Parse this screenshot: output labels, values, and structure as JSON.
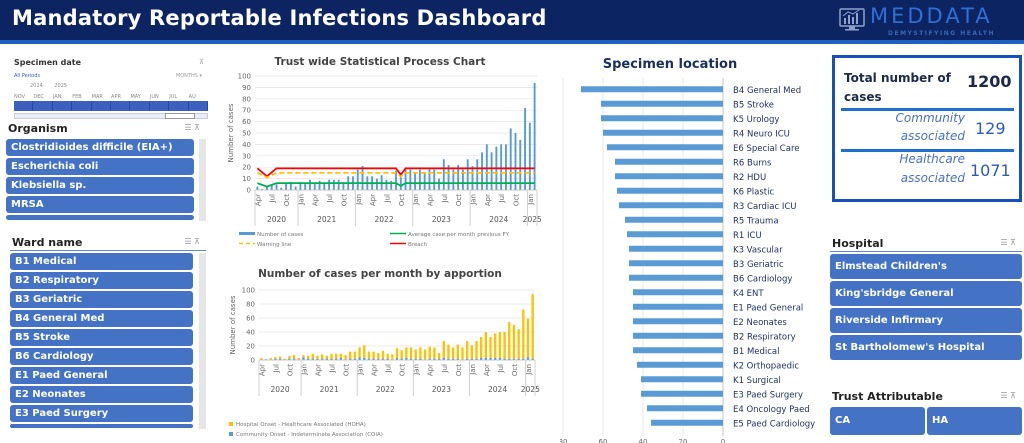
{
  "header": {
    "title": "Mandatory Reportable Infections Dashboard",
    "logo_text": "MEDDATA",
    "logo_tagline": "DEMYSTIFYING HEALTH"
  },
  "specimen_date": {
    "title": "Specimen date",
    "selection": "All Periods",
    "level": "MONTHS ▾",
    "years": [
      "2024",
      "2025"
    ],
    "months": [
      "NOV",
      "DEC",
      "JAN",
      "FEB",
      "MAR",
      "APR",
      "MAY",
      "JUN",
      "JUL",
      "AU"
    ]
  },
  "organism": {
    "title": "Organism",
    "items": [
      "Clostridioides difficile (EIA+)",
      "Escherichia coli",
      "Klebsiella sp.",
      "MRSA"
    ]
  },
  "ward": {
    "title": "Ward name",
    "items": [
      "B1 Medical",
      "B2 Respiratory",
      "B3 Geriatric",
      "B4 General Med",
      "B5 Stroke",
      "B6 Cardiology",
      "E1 Paed General",
      "E2 Neonates",
      "E3 Paed Surgery"
    ]
  },
  "hospital": {
    "title": "Hospital",
    "items": [
      "Elmstead Children's",
      "King'sbridge General",
      "Riverside Infirmary",
      "St Bartholomew's Hospital"
    ]
  },
  "trust_attributable": {
    "title": "Trust Attributable",
    "items": [
      "CA",
      "HA"
    ]
  },
  "kpi": {
    "total_label": "Total number of cases",
    "total_value": "1200",
    "community_label": "Community associated",
    "community_value": "129",
    "healthcare_label": "Healthcare associated",
    "healthcare_value": "1071"
  },
  "colors": {
    "header_bg": "#0c2461",
    "slicer_blue": "#4472c4",
    "bar_blue": "#5b9bd5",
    "hoha_yellow": "#ffc000",
    "breach_red": "#ff0000",
    "average_green": "#00b050",
    "warning_orange": "#ffc000"
  },
  "chart_data": [
    {
      "type": "bar",
      "title": "Trust wide Statistical Process Chart",
      "ylabel": "Number of cases",
      "xlabel": "",
      "ylim": [
        0,
        100
      ],
      "yticks": [
        0,
        10,
        20,
        30,
        40,
        50,
        60,
        70,
        80,
        90,
        100
      ],
      "month_ticks": [
        "Apr",
        "Jul",
        "Oct",
        "Jan"
      ],
      "years": [
        "2020",
        "2021",
        "2022",
        "2023",
        "2024",
        "2025"
      ],
      "x_start": "2020-04",
      "values": [
        3,
        1,
        3,
        4,
        5,
        2,
        6,
        7,
        3,
        7,
        6,
        9,
        6,
        8,
        6,
        9,
        9,
        9,
        7,
        12,
        12,
        18,
        21,
        12,
        12,
        10,
        13,
        9,
        8,
        17,
        14,
        18,
        18,
        15,
        18,
        15,
        19,
        18,
        10,
        27,
        22,
        18,
        22,
        18,
        27,
        21,
        27,
        33,
        40,
        33,
        38,
        40,
        40,
        54,
        50,
        44,
        72,
        59,
        94
      ],
      "lines": [
        {
          "name": "Breach",
          "color": "#ff0000",
          "values_note": "approx 19, dips to ~12 in 2020 Jun and ~13 in 2022 Oct",
          "value": 19
        },
        {
          "name": "Warning line",
          "color": "#ffc000",
          "dashed": true,
          "value": 15
        },
        {
          "name": "Average case per month previous FY",
          "color": "#00b050",
          "value": 6
        }
      ],
      "legend": [
        "Number of cases",
        "Average case per month previous FY",
        "Warning line",
        "Breach"
      ],
      "legend_position": "bottom"
    },
    {
      "type": "bar",
      "stacked": true,
      "title": "Number of cases per month by apportion",
      "ylabel": "Number of cases",
      "ylim": [
        0,
        100
      ],
      "yticks": [
        0,
        20,
        40,
        60,
        80,
        100
      ],
      "month_ticks": [
        "Apr",
        "Jul",
        "Oct",
        "Jan"
      ],
      "years": [
        "2020",
        "2021",
        "2022",
        "2023",
        "2024",
        "2025"
      ],
      "x_start": "2020-04",
      "series": [
        {
          "name": "Hospital Onset - Healthcare Associated (HOHA)",
          "color": "#ffc000",
          "values": [
            2,
            0,
            2,
            2,
            3,
            1,
            4,
            5,
            2,
            3,
            4,
            7,
            4,
            6,
            4,
            7,
            7,
            6,
            6,
            10,
            10,
            14,
            18,
            10,
            10,
            8,
            11,
            7,
            7,
            14,
            12,
            15,
            16,
            13,
            16,
            14,
            17,
            16,
            8,
            24,
            20,
            16,
            20,
            17,
            25,
            19,
            25,
            30,
            37,
            30,
            35,
            37,
            38,
            52,
            48,
            42,
            70,
            55,
            92
          ]
        },
        {
          "name": "Community Onset - Indeterminate Association (COIA)",
          "color": "#5b9bd5",
          "values": [
            1,
            1,
            1,
            2,
            2,
            1,
            2,
            2,
            1,
            4,
            2,
            2,
            2,
            2,
            2,
            2,
            2,
            3,
            1,
            2,
            2,
            4,
            3,
            2,
            2,
            2,
            2,
            2,
            1,
            3,
            2,
            3,
            2,
            2,
            2,
            1,
            2,
            2,
            2,
            3,
            2,
            2,
            2,
            1,
            2,
            2,
            2,
            3,
            3,
            3,
            3,
            3,
            2,
            2,
            2,
            2,
            2,
            4,
            2
          ]
        }
      ],
      "legend": [
        "Hospital Onset - Healthcare Associated (HOHA)",
        "Community Onset - Indeterminate Association (COIA)"
      ],
      "legend_position": "bottom-left"
    },
    {
      "type": "bar",
      "orientation": "horizontal",
      "reversed_x": true,
      "title": "Specimen location",
      "xlim": [
        0,
        80
      ],
      "categories": [
        "B4 General Med",
        "B5 Stroke",
        "K5 Urology",
        "R4 Neuro ICU",
        "E6 Special Care",
        "R6 Burns",
        "R2 HDU",
        "K6 Plastic",
        "R3 Cardiac ICU",
        "R5 Trauma",
        "R1 ICU",
        "K3 Vascular",
        "B3 Geriatric",
        "B6 Cardiology",
        "K4 ENT",
        "E1 Paed General",
        "E2 Neonates",
        "B2 Respiratory",
        "B1 Medical",
        "K2 Orthopaedic",
        "K1 Surgical",
        "E3 Paed Surgery",
        "E4 Oncology Paed",
        "E5 Paed Cardiology"
      ],
      "values": [
        71,
        61,
        61,
        60,
        58,
        54,
        54,
        53,
        52,
        49,
        48,
        47,
        47,
        47,
        45,
        45,
        45,
        45,
        45,
        43,
        41,
        41,
        38,
        36
      ]
    }
  ]
}
